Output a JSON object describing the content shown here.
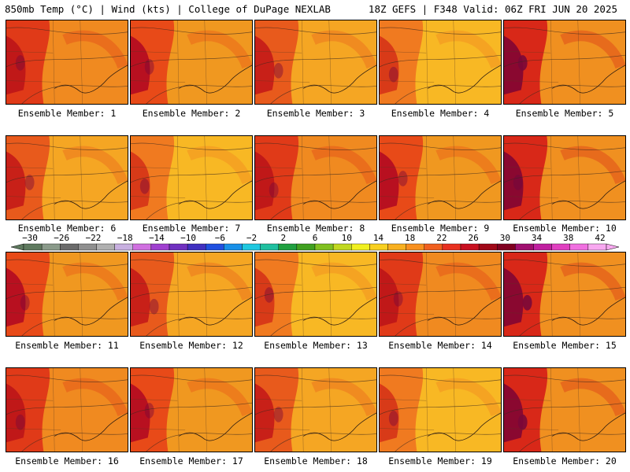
{
  "header": {
    "left": "850mb Temp (°C) | Wind (kts) | College of DuPage NEXLAB",
    "right": "18Z GEFS | F348 Valid: 06Z FRI JUN 20 2025"
  },
  "members": [
    {
      "label": "Ensemble Member: 1",
      "variant": 0
    },
    {
      "label": "Ensemble Member: 2",
      "variant": 1
    },
    {
      "label": "Ensemble Member: 3",
      "variant": 2
    },
    {
      "label": "Ensemble Member: 4",
      "variant": 3
    },
    {
      "label": "Ensemble Member: 5",
      "variant": 4
    },
    {
      "label": "Ensemble Member: 6",
      "variant": 2
    },
    {
      "label": "Ensemble Member: 7",
      "variant": 3
    },
    {
      "label": "Ensemble Member: 8",
      "variant": 0
    },
    {
      "label": "Ensemble Member: 9",
      "variant": 1
    },
    {
      "label": "Ensemble Member: 10",
      "variant": 4
    },
    {
      "label": "Ensemble Member: 11",
      "variant": 1
    },
    {
      "label": "Ensemble Member: 12",
      "variant": 2
    },
    {
      "label": "Ensemble Member: 13",
      "variant": 3
    },
    {
      "label": "Ensemble Member: 14",
      "variant": 0
    },
    {
      "label": "Ensemble Member: 15",
      "variant": 4
    },
    {
      "label": "Ensemble Member: 16",
      "variant": 0
    },
    {
      "label": "Ensemble Member: 17",
      "variant": 1
    },
    {
      "label": "Ensemble Member: 18",
      "variant": 2
    },
    {
      "label": "Ensemble Member: 19",
      "variant": 3
    },
    {
      "label": "Ensemble Member: 20",
      "variant": 4
    }
  ],
  "colorbar": {
    "ticks": [
      "-30",
      "-26",
      "-22",
      "-18",
      "-14",
      "-10",
      "-6",
      "-2",
      "2",
      "6",
      "10",
      "14",
      "18",
      "22",
      "26",
      "30",
      "34",
      "38",
      "42"
    ],
    "colors": [
      "#5f7a5f",
      "#8a9a8a",
      "#6b6b6b",
      "#8f8f8f",
      "#b0b0b0",
      "#c8b0e0",
      "#d070e0",
      "#a040d0",
      "#7030c0",
      "#4030c0",
      "#2050e0",
      "#1890e8",
      "#20c8e0",
      "#20c0a0",
      "#20a040",
      "#40a020",
      "#80c020",
      "#c0d820",
      "#f0f020",
      "#f8d020",
      "#f8b020",
      "#f89020",
      "#f06020",
      "#e83020",
      "#c81020",
      "#a00818",
      "#800020",
      "#a01070",
      "#c020a0",
      "#e040c0",
      "#f070e0",
      "#f8a8f0"
    ]
  }
}
